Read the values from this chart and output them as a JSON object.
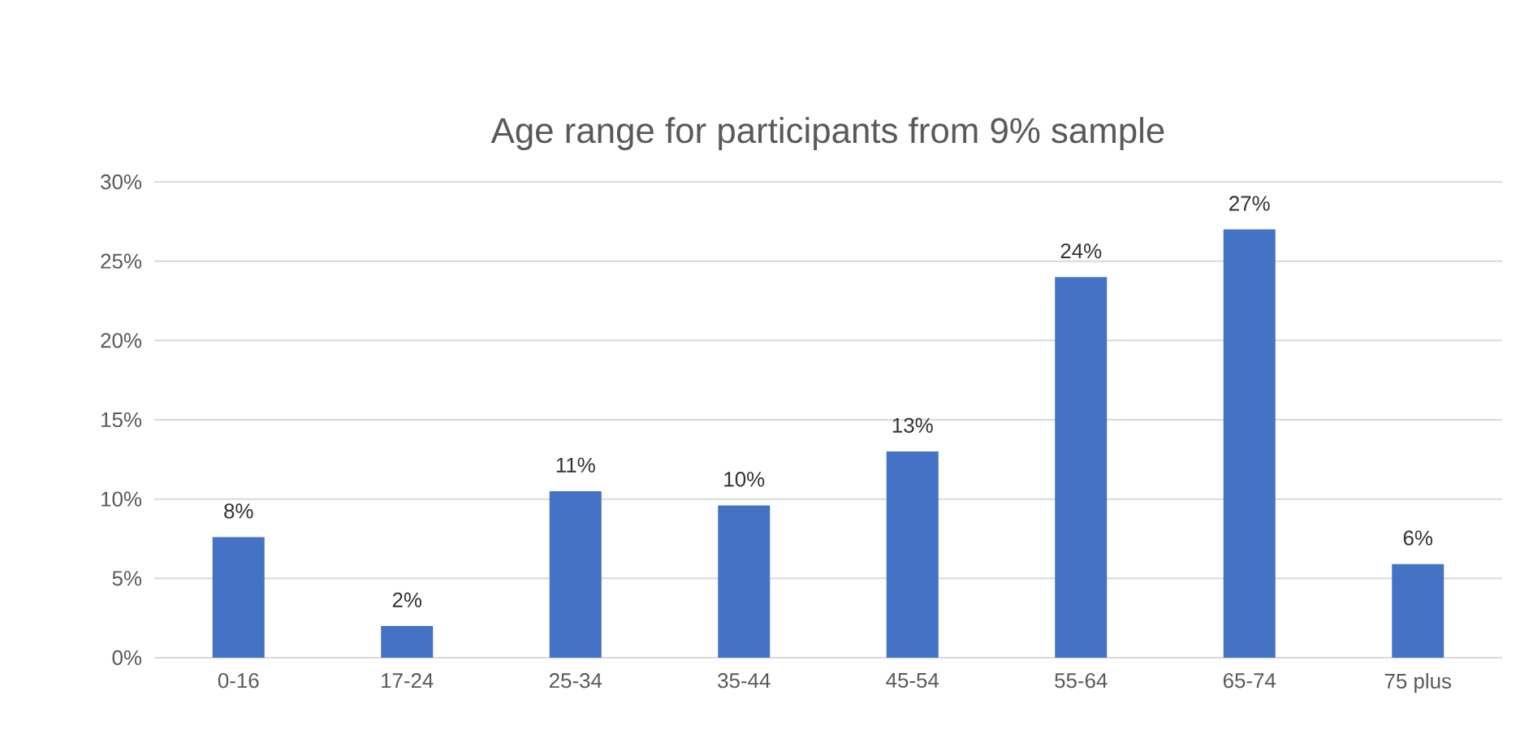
{
  "chart_data": {
    "type": "bar",
    "title": "Age range for participants from 9% sample",
    "categories": [
      "0-16",
      "17-24",
      "25-34",
      "35-44",
      "45-54",
      "55-64",
      "65-74",
      "75 plus"
    ],
    "values": [
      7.6,
      2.0,
      10.5,
      9.6,
      13.0,
      24.0,
      27.0,
      5.9
    ],
    "value_labels": [
      "8%",
      "2%",
      "11%",
      "10%",
      "13%",
      "24%",
      "27%",
      "6%"
    ],
    "color": "#4472c4",
    "ylim": [
      0,
      30
    ],
    "yticks": [
      {
        "value": 0,
        "label": "0%"
      },
      {
        "value": 5,
        "label": "5%"
      },
      {
        "value": 10,
        "label": "10%"
      },
      {
        "value": 15,
        "label": "15%"
      },
      {
        "value": 20,
        "label": "20%"
      },
      {
        "value": 25,
        "label": "25%"
      },
      {
        "value": 30,
        "label": "30%"
      }
    ],
    "grid": "y"
  }
}
